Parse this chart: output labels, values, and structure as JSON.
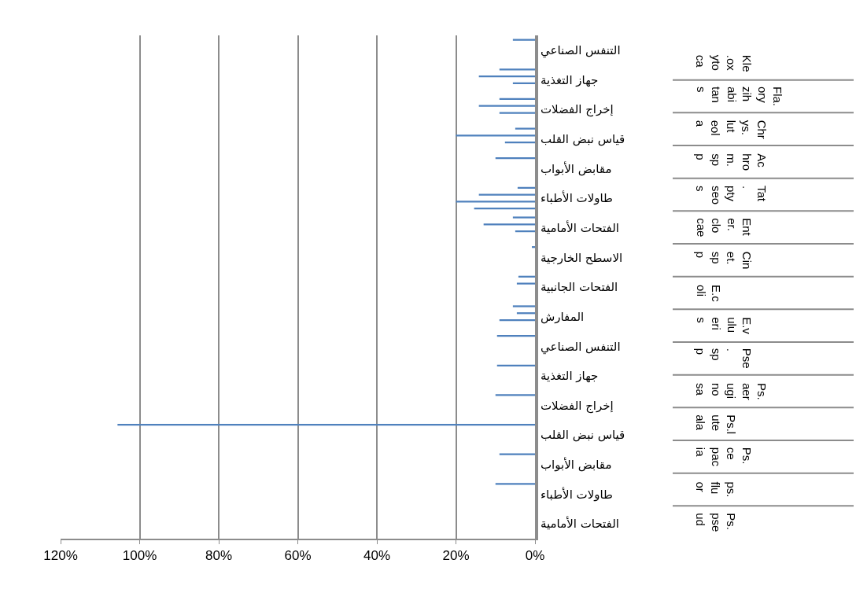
{
  "chart_data": {
    "type": "bar",
    "orientation": "horizontal",
    "categories": [
      "التنفس الصناعي",
      "جهاز التغذية",
      "إخراج الفضلات",
      "قياس نبض القلب",
      "مقابض الأبواب",
      "طاولات الأطباء",
      "الفتحات الأمامية",
      "الاسطح الخارجية",
      "الفتحات الجانبية",
      "المفارش",
      "التنفس الصناعي",
      "جهاز التغذية",
      "إخراج الفضلات",
      "قياس نبض القلب",
      "مقابض الأبواب",
      "طاولات الأطباء",
      "الفتحات الأمامية"
    ],
    "series": [
      {
        "color": "#4f81bd",
        "values": [
          5.6,
          9,
          9,
          5,
          10,
          4.4,
          5.6,
          0.8,
          4.2,
          5.6,
          9.6,
          9.6,
          10,
          105.6,
          9,
          10,
          null
        ]
      },
      {
        "color": "#4f81bd",
        "values": [
          null,
          14.2,
          14.2,
          20,
          null,
          14.2,
          13,
          null,
          4.6,
          4.6,
          null,
          null,
          null,
          null,
          null,
          null,
          null
        ]
      },
      {
        "color": "#4f81bd",
        "values": [
          null,
          5.6,
          9,
          7.6,
          null,
          20,
          5,
          null,
          null,
          9,
          null,
          null,
          null,
          null,
          null,
          null,
          null
        ]
      },
      {
        "color": "#4f81bd",
        "values": [
          null,
          null,
          null,
          null,
          null,
          15.4,
          null,
          null,
          null,
          null,
          null,
          null,
          null,
          null,
          null,
          null,
          null
        ]
      }
    ],
    "xlim": [
      120,
      0
    ],
    "xticks": [
      {
        "value": 0,
        "label": "0%"
      },
      {
        "value": 20,
        "label": "20%"
      },
      {
        "value": 40,
        "label": "40%"
      },
      {
        "value": 60,
        "label": "60%"
      },
      {
        "value": 80,
        "label": "80%"
      },
      {
        "value": 100,
        "label": "100%"
      },
      {
        "value": 120,
        "label": "120%"
      }
    ],
    "grid": "x",
    "annotations": [
      "Kle\n.ox\nyto\nca",
      "Fla.\nory\nzih\nabi\ntan\ns",
      "Chr\nys.\nlut\neol\na",
      "Ac\nhro\nm.\nsp\np",
      "Tat\n.\npty\nseo\ns",
      "Ent\ner.\nclo\ncae",
      "Cin\net.\nsp\np",
      "E.c\noli",
      "E.v\nulu\neri\ns",
      "Pse\n.\nsp\np",
      "Ps.\naer\nugi\nno\nsa",
      "Ps.l\nute\nala",
      "Ps.\nce\npac\nia",
      "ps.\nflu\nor",
      "Ps.\npse\nud"
    ]
  }
}
